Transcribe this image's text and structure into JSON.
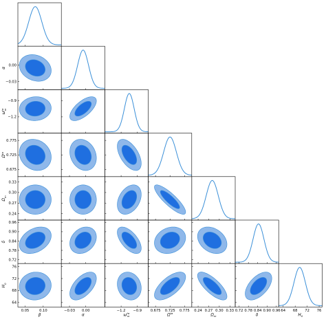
{
  "chart_data": {
    "type": "triangle-corner-plot",
    "description_note": "",
    "params": [
      {
        "key": "beta",
        "label": "β",
        "range": [
          0.03,
          0.15
        ],
        "ticks": [
          0.05,
          0.1
        ],
        "tick_labels": [
          "0.05",
          "0.10"
        ],
        "mean": 0.078,
        "sd": 0.018
      },
      {
        "key": "alpha",
        "label": "α",
        "range": [
          -0.045,
          0.035
        ],
        "ticks": [
          -0.03,
          0.0
        ],
        "tick_labels": [
          "−0.03",
          "0.00"
        ],
        "mean": -0.005,
        "sd": 0.01
      },
      {
        "key": "omega",
        "label": "ω_m^{ta}",
        "range": [
          -1.5,
          -0.7
        ],
        "ticks": [
          -1.2,
          -0.9
        ],
        "tick_labels": [
          "−1.2",
          "−0.9"
        ],
        "mean": -1.05,
        "sd": 0.09
      },
      {
        "key": "omega_r",
        "label": "Ω^{ta}",
        "range": [
          0.65,
          0.8
        ],
        "ticks": [
          0.675,
          0.725,
          0.775
        ],
        "tick_labels": [
          "0.675",
          "0.725",
          "0.775"
        ],
        "mean": 0.725,
        "sd": 0.022
      },
      {
        "key": "omega_m",
        "label": "Ω_m",
        "range": [
          0.222,
          0.345
        ],
        "ticks": [
          0.24,
          0.27,
          0.3,
          0.33
        ],
        "tick_labels": [
          "0.24",
          "0.27",
          "0.30",
          "0.33"
        ],
        "mean": 0.28,
        "sd": 0.017
      },
      {
        "key": "delta",
        "label": "δ",
        "range": [
          0.695,
          0.975
        ],
        "ticks": [
          0.72,
          0.78,
          0.84,
          0.9,
          0.96
        ],
        "tick_labels": [
          "0.72",
          "0.78",
          "0.84",
          "0.90",
          "0.96"
        ],
        "mean": 0.845,
        "sd": 0.035
      },
      {
        "key": "H0",
        "label": "H_0",
        "range": [
          62.5,
          77.0
        ],
        "ticks": [
          64,
          68,
          72,
          76
        ],
        "tick_labels": [
          "64",
          "68",
          "72",
          "76"
        ],
        "mean": 69.5,
        "sd": 1.9
      }
    ],
    "correlations": {
      "1,0": -0.2,
      "2,0": 0.05,
      "2,1": 0.65,
      "3,0": -0.15,
      "3,1": -0.2,
      "3,2": -0.55,
      "4,0": 0.0,
      "4,1": 0.0,
      "4,2": 0.35,
      "4,3": -0.85,
      "5,0": 0.35,
      "5,1": 0.25,
      "5,2": -0.6,
      "5,3": 0.2,
      "5,4": -0.3,
      "6,0": 0.05,
      "6,1": 0.55,
      "6,2": -0.15,
      "6,3": 0.65,
      "6,4": -0.75,
      "6,5": 0.55
    },
    "contour_levels": [
      "68%",
      "95%"
    ],
    "colors": {
      "inner_fill": "#1f6fe0",
      "outer_fill": "#8fb8ea",
      "outline": "#3a8fd8",
      "marginal_line": "#3a8fd8"
    }
  }
}
